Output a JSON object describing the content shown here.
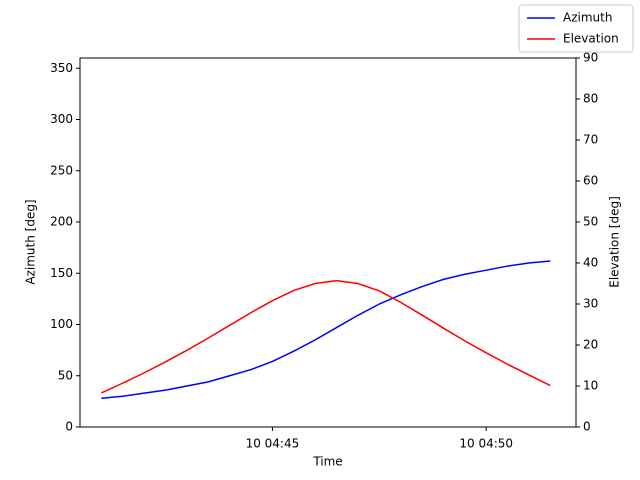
{
  "chart_data": {
    "type": "line",
    "x": [
      41,
      41.5,
      42,
      42.5,
      43,
      43.5,
      44,
      44.5,
      45,
      45.5,
      46,
      46.5,
      47,
      47.5,
      48,
      48.5,
      49,
      49.5,
      50,
      50.5,
      51,
      51.5
    ],
    "xlim": [
      40.5,
      52.1
    ],
    "xticks": [
      {
        "value": 45,
        "label": "10 04:45"
      },
      {
        "value": 50,
        "label": "10 04:50"
      }
    ],
    "xlabel": "Time",
    "ylabel": "Azimuth [deg]",
    "y2label": "Elevation [deg]",
    "ylim": [
      0,
      360
    ],
    "yticks": [
      0,
      50,
      100,
      150,
      200,
      250,
      300,
      350
    ],
    "y2lim": [
      0,
      90
    ],
    "y2ticks": [
      0,
      10,
      20,
      30,
      40,
      50,
      60,
      70,
      80,
      90
    ],
    "legend": "upper right",
    "series": [
      {
        "name": "Azimuth",
        "color": "#0000ff",
        "values": [
          28,
          30,
          33,
          36,
          40,
          44,
          50,
          56,
          64,
          74,
          85,
          97,
          109,
          120,
          129,
          137,
          144,
          149,
          153,
          157,
          160,
          162
        ]
      },
      {
        "name": "Elevation",
        "color": "#ff0000",
        "axis": "y2",
        "values": [
          8.3,
          10.7,
          13.2,
          15.9,
          18.7,
          21.7,
          24.8,
          27.9,
          30.8,
          33.3,
          35.0,
          35.7,
          35.0,
          33.2,
          30.4,
          27.3,
          24.1,
          21.0,
          18.1,
          15.3,
          12.7,
          10.1
        ]
      }
    ]
  }
}
